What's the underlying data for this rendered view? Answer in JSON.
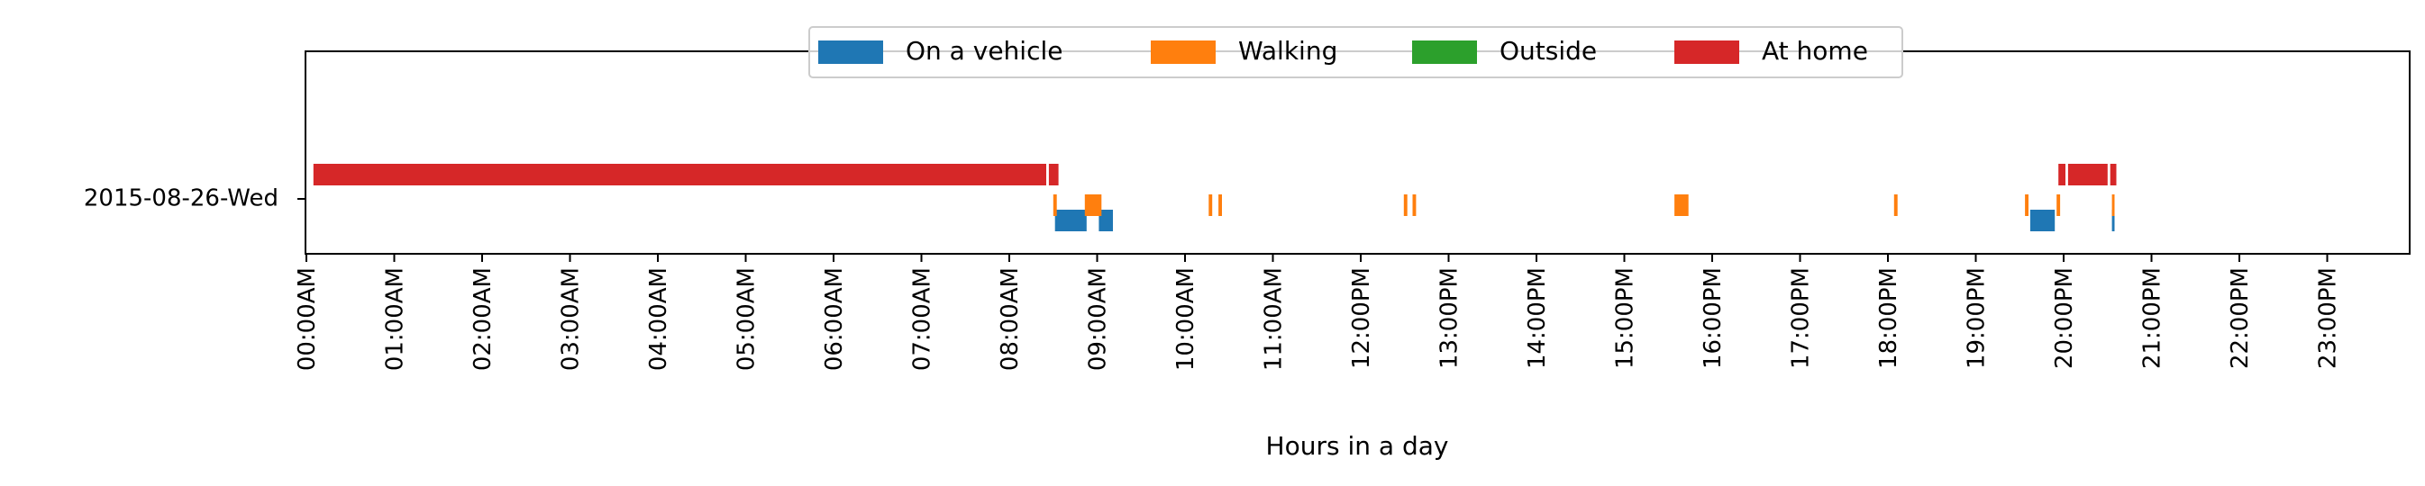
{
  "chart_data": {
    "type": "timeline",
    "title": "",
    "xlabel": "Hours in a day",
    "ylabel": "",
    "xlim_hours": [
      0,
      24
    ],
    "grid": false,
    "legend_placement": "top-center",
    "row_label": "2015-08-26-Wed",
    "tick_labels": [
      "00:00AM",
      "01:00AM",
      "02:00AM",
      "03:00AM",
      "04:00AM",
      "05:00AM",
      "06:00AM",
      "07:00AM",
      "08:00AM",
      "09:00AM",
      "10:00AM",
      "11:00AM",
      "12:00PM",
      "13:00PM",
      "14:00PM",
      "15:00PM",
      "16:00PM",
      "17:00PM",
      "18:00PM",
      "19:00PM",
      "20:00PM",
      "21:00PM",
      "22:00PM",
      "23:00PM"
    ],
    "series": [
      {
        "name": "On a vehicle",
        "color": "#1f77b4",
        "segments": [
          [
            8.52,
            8.88
          ],
          [
            9.02,
            9.18
          ],
          [
            19.62,
            19.9
          ],
          [
            20.55,
            20.58
          ]
        ]
      },
      {
        "name": "Walking",
        "color": "#ff7f0e",
        "segments": [
          [
            8.5,
            8.54
          ],
          [
            8.86,
            9.05
          ],
          [
            10.27,
            10.31
          ],
          [
            10.38,
            10.42
          ],
          [
            12.49,
            12.53
          ],
          [
            12.59,
            12.63
          ],
          [
            15.57,
            15.73
          ],
          [
            18.07,
            18.11
          ],
          [
            19.56,
            19.6
          ],
          [
            19.92,
            19.96
          ],
          [
            20.55,
            20.58
          ]
        ]
      },
      {
        "name": "Outside",
        "color": "#2ca02c",
        "segments": []
      },
      {
        "name": "At home",
        "color": "#d62728",
        "segments": [
          [
            0.08,
            8.42
          ],
          [
            8.45,
            8.56
          ],
          [
            19.94,
            20.02
          ],
          [
            20.05,
            20.5
          ],
          [
            20.53,
            20.6
          ]
        ]
      }
    ]
  }
}
